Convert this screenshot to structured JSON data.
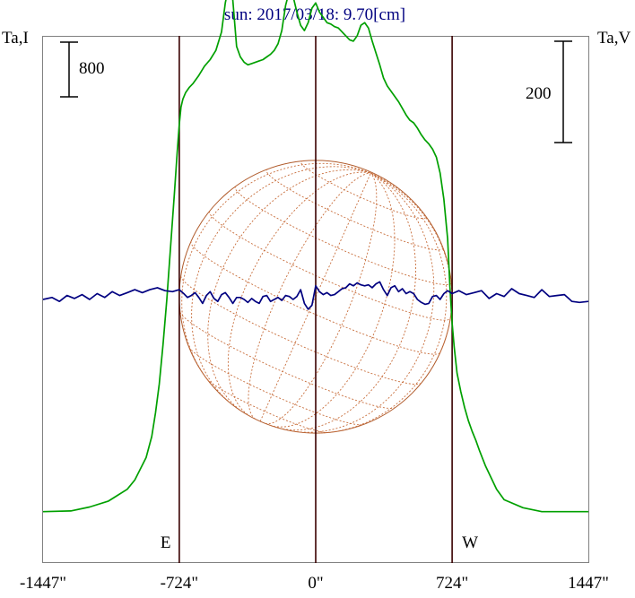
{
  "chart_data": {
    "type": "line",
    "title": "sun: 2017/03/18: 9.70[cm]",
    "left_axis_label": "Ta,I",
    "right_axis_label": "Ta,V",
    "left_scale_label": "800",
    "right_scale_label": "200",
    "x_ticks": [
      {
        "value": -1447,
        "label": "-1447\""
      },
      {
        "value": -724,
        "label": "-724\""
      },
      {
        "value": 0,
        "label": "0\""
      },
      {
        "value": 724,
        "label": "724\""
      },
      {
        "value": 1447,
        "label": "1447\""
      }
    ],
    "xlim": [
      -1447,
      1447
    ],
    "limb_markers": [
      {
        "label": "E",
        "x": -724
      },
      {
        "label": "W",
        "x": 724
      }
    ],
    "ylim_I": [
      -400,
      3600
    ],
    "ylim_V": [
      -1350,
      1350
    ],
    "grid": false,
    "series": [
      {
        "name": "I",
        "color": "#00a000",
        "x": [
          -1447,
          -1300,
          -1200,
          -1100,
          -1000,
          -960,
          -900,
          -870,
          -850,
          -830,
          -810,
          -790,
          -770,
          -750,
          -735,
          -724,
          -715,
          -705,
          -690,
          -670,
          -650,
          -620,
          -590,
          -560,
          -530,
          -500,
          -480,
          -460,
          -440,
          -420,
          -400,
          -380,
          -360,
          -340,
          -320,
          -300,
          -280,
          -260,
          -240,
          -220,
          -200,
          -180,
          -160,
          -140,
          -120,
          -100,
          -80,
          -60,
          -40,
          -20,
          0,
          20,
          40,
          60,
          80,
          100,
          120,
          140,
          160,
          180,
          200,
          220,
          240,
          260,
          280,
          300,
          320,
          340,
          360,
          380,
          400,
          420,
          440,
          460,
          480,
          500,
          520,
          540,
          560,
          580,
          600,
          620,
          640,
          660,
          680,
          700,
          712,
          724,
          735,
          750,
          770,
          790,
          810,
          830,
          850,
          870,
          900,
          960,
          1000,
          1100,
          1200,
          1300,
          1447
        ],
        "values": [
          -10,
          -5,
          25,
          70,
          160,
          230,
          400,
          560,
          740,
          960,
          1260,
          1600,
          2000,
          2400,
          2720,
          2930,
          3060,
          3120,
          3170,
          3210,
          3240,
          3300,
          3370,
          3420,
          3490,
          3630,
          3850,
          3990,
          3870,
          3520,
          3440,
          3400,
          3380,
          3390,
          3400,
          3410,
          3420,
          3440,
          3460,
          3490,
          3540,
          3640,
          3830,
          3940,
          3900,
          3780,
          3680,
          3640,
          3700,
          3810,
          3850,
          3780,
          3740,
          3700,
          3690,
          3670,
          3660,
          3630,
          3600,
          3570,
          3560,
          3600,
          3680,
          3700,
          3660,
          3560,
          3470,
          3380,
          3280,
          3220,
          3180,
          3140,
          3100,
          3050,
          3000,
          2960,
          2940,
          2900,
          2850,
          2810,
          2780,
          2740,
          2680,
          2560,
          2360,
          2060,
          1700,
          1420,
          1240,
          1040,
          900,
          780,
          680,
          600,
          530,
          450,
          340,
          160,
          80,
          20,
          -10,
          -10,
          -10
        ]
      },
      {
        "name": "V",
        "color": "#000080",
        "x": [
          -1447,
          -1400,
          -1360,
          -1320,
          -1280,
          -1240,
          -1200,
          -1160,
          -1120,
          -1080,
          -1040,
          -1000,
          -960,
          -920,
          -880,
          -840,
          -800,
          -760,
          -724,
          -700,
          -680,
          -660,
          -640,
          -620,
          -600,
          -580,
          -560,
          -540,
          -520,
          -500,
          -480,
          -460,
          -440,
          -420,
          -400,
          -380,
          -360,
          -340,
          -320,
          -300,
          -280,
          -260,
          -240,
          -220,
          -200,
          -180,
          -160,
          -140,
          -120,
          -100,
          -80,
          -60,
          -40,
          -20,
          0,
          20,
          40,
          60,
          80,
          100,
          120,
          140,
          160,
          180,
          200,
          220,
          240,
          260,
          280,
          300,
          320,
          340,
          360,
          380,
          400,
          420,
          440,
          460,
          480,
          500,
          520,
          540,
          560,
          580,
          600,
          620,
          640,
          660,
          680,
          700,
          724,
          760,
          800,
          840,
          880,
          920,
          960,
          1000,
          1040,
          1080,
          1120,
          1160,
          1200,
          1240,
          1280,
          1320,
          1360,
          1400,
          1447
        ],
        "values": [
          0,
          10,
          -10,
          20,
          5,
          25,
          0,
          30,
          10,
          40,
          20,
          35,
          50,
          35,
          50,
          60,
          45,
          40,
          50,
          30,
          10,
          20,
          35,
          10,
          -20,
          20,
          40,
          5,
          -10,
          25,
          35,
          10,
          -20,
          10,
          10,
          0,
          -15,
          5,
          -10,
          -20,
          15,
          20,
          -10,
          0,
          10,
          -5,
          20,
          15,
          0,
          15,
          50,
          -20,
          -50,
          -30,
          70,
          40,
          25,
          35,
          20,
          25,
          40,
          55,
          60,
          80,
          70,
          85,
          75,
          70,
          75,
          60,
          80,
          90,
          50,
          20,
          60,
          70,
          40,
          55,
          30,
          40,
          30,
          0,
          -15,
          -25,
          -20,
          15,
          20,
          0,
          30,
          45,
          30,
          45,
          25,
          35,
          45,
          5,
          30,
          15,
          55,
          30,
          20,
          10,
          50,
          15,
          20,
          25,
          -10,
          -15,
          -10
        ]
      }
    ]
  }
}
